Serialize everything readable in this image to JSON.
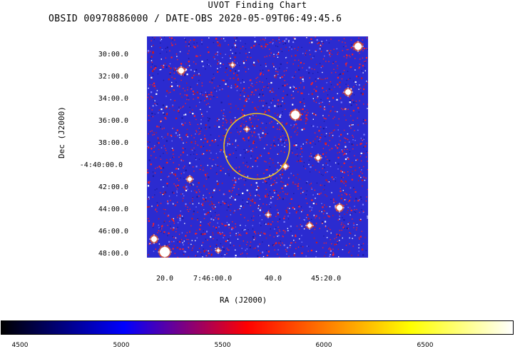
{
  "chart": {
    "title": "UVOT Finding Chart",
    "subtitle": "OBSID 00970886000 / DATE-OBS 2020-05-09T06:49:45.6",
    "dec_axis_title": "Dec (J2000)",
    "ra_axis_title": "RA (J2000)",
    "dec_ticks": [
      "30:00.0",
      "32:00.0",
      "34:00.0",
      "36:00.0",
      "38:00.0",
      "-4:40:00.0",
      "42:00.0",
      "44:00.0",
      "46:00.0",
      "48:00.0"
    ],
    "ra_ticks": [
      "20.0",
      "7:46:00.0",
      "40.0",
      "45:20.0"
    ],
    "colorbar_ticks": [
      "4500",
      "5000",
      "5500",
      "6000",
      "6500"
    ],
    "colorbar_colors": [
      "#000000",
      "#0000ff",
      "#ff0000",
      "#ffff00",
      "#ffffff"
    ],
    "circle_color": "#f0c020",
    "background_color": "#2b2bd0"
  }
}
